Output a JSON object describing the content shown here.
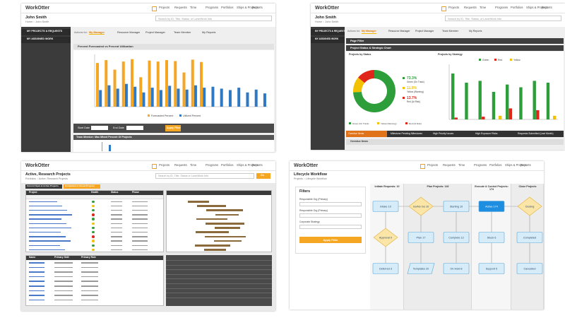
{
  "panels": [
    {
      "logo": "WorkOtter",
      "nav": [
        "Projects",
        "Requests",
        "Time",
        "Programs",
        "Portfolios",
        "Ships & Projects",
        "Reports"
      ],
      "user": "John Smith",
      "breadcrumb": "Home :: John Smith",
      "search": "Search by ID, Title, Status, or Lane/Work Info",
      "sidebar": [
        "MY PROJECTS & REQUESTS",
        "MY ASSIGNED WORK"
      ],
      "actions": "Actions for:",
      "tabs": [
        "My Manager",
        "Resource Manager",
        "Project Manager",
        "Team Member",
        "My Reports"
      ],
      "section": "Percent Forecasted vs Percent Utilization",
      "filters": [
        "Start Date",
        "End Date"
      ],
      "button": "Apply Filter",
      "footer": "Team Member: Max Mixed Percent Of Projects"
    },
    {
      "logo": "WorkOtter",
      "nav": [
        "Projects",
        "Requests",
        "Time",
        "Programs",
        "Portfolios",
        "Ships & Projects",
        "Reports"
      ],
      "user": "John Smith",
      "breadcrumb": "Home :: John Smith",
      "search": "Search by ID, Title, Status, or Lane/Work Info",
      "sidebar": [
        "MY PROJECTS & REQUESTS",
        "MY ASSIGNED WORK"
      ],
      "actions": "Actions for:",
      "tabs": [
        "My Manager",
        "Resource Manager",
        "Project Manager",
        "Team Member",
        "My Reports"
      ],
      "sections": [
        "Page Filter",
        "Project Status & Strategic Chart"
      ],
      "subtitles": [
        "Projects by Status",
        "Projects by Strategy"
      ],
      "bottom_tabs": [
        "Overdue Items",
        "Milestone Pending Milestones",
        "High Priority Issues",
        "High Exposure Risks",
        "Requests Submitted (Last Month)"
      ],
      "overdue": "Overdue Items"
    },
    {
      "logo": "WorkOtter",
      "nav": [
        "Projects",
        "Requests",
        "Time",
        "Programs",
        "Portfolios",
        "Ships & Projects",
        "Reports"
      ],
      "title": "Active, Research Projects",
      "breadcrumb": "Portfolios :: Active, Research Projects",
      "search": "Search by ID, Title, Status or Lane/Work Info",
      "go": "Go",
      "buttons": [
        "Current Open & Active Projects",
        "Completed & Closed Projects"
      ],
      "columns": [
        "Project",
        "Health",
        "Status",
        "Phase"
      ],
      "lower_columns": [
        "Name",
        "Primary Skill",
        "Primary Role"
      ]
    },
    {
      "logo": "WorkOtter",
      "nav": [
        "Projects",
        "Requests",
        "Time",
        "Programs",
        "Portfolios",
        "Ships & Projects",
        "Reports"
      ],
      "title": "Lifecycle Workflow",
      "breadcrumb": "Projects :: Lifecycle Workflow",
      "filters_title": "Filters",
      "filters": [
        "Responsible Org (Primary)",
        "Responsible Org (Primary)",
        "Corporate Strategy"
      ],
      "button": "Apply Filter",
      "stages": [
        "Initiate Requests: 10",
        "Plan Projects: 140",
        "Execute & Control Projects: 174",
        "Close Projects"
      ],
      "nodes": [
        "Intake 10",
        "Approval 0",
        "Deferred 3",
        "Go/No Go 10",
        "Plan 17",
        "Templates 20",
        "Starting 10",
        "Complete 12",
        "On Hold 8",
        "Active 174",
        "Stuck 6",
        "Support 5",
        "Closing",
        "Completed",
        "Cancelled"
      ]
    }
  ],
  "chart_data": [
    {
      "type": "bar",
      "categories": [
        null,
        null,
        null,
        null,
        null,
        null,
        null,
        null,
        null,
        null,
        null,
        null,
        null,
        null,
        null,
        null,
        null,
        null,
        null,
        null
      ],
      "series": [
        {
          "name": "Forecasted Percent",
          "color": "#f5a623",
          "values": [
            92,
            98,
            78,
            95,
            100,
            62,
            97,
            95,
            98,
            96,
            72,
            99,
            94,
            null,
            null,
            null,
            null,
            null,
            null,
            null
          ]
        },
        {
          "name": "Utilized Percent",
          "color": "#2f78c4",
          "values": [
            35,
            45,
            38,
            48,
            42,
            30,
            40,
            35,
            44,
            38,
            36,
            45,
            40,
            42,
            38,
            35,
            40,
            30,
            36,
            28
          ]
        }
      ],
      "ylim": [
        0,
        110
      ]
    },
    {
      "type": "pie",
      "categories": [
        "Green (On Track)",
        "Yellow (Warning)",
        "Red (At Risk)"
      ],
      "values": [
        73.3,
        11.9,
        13.7
      ],
      "value_labels": [
        "73.3%",
        "11.9%",
        "13.7%"
      ],
      "colors": [
        "#2e9e3a",
        "#f2c200",
        "#e0261b"
      ]
    },
    {
      "type": "bar",
      "categories": [
        null,
        null,
        null,
        null,
        null,
        null,
        null,
        null
      ],
      "series": [
        {
          "name": "Green",
          "color": "#2e9e3a",
          "values": [
            50,
            40,
            42,
            30,
            38,
            35,
            42,
            40
          ]
        },
        {
          "name": "Red",
          "color": "#e0261b",
          "values": [
            2,
            0,
            3,
            0,
            12,
            0,
            10,
            0
          ]
        },
        {
          "name": "Yellow",
          "color": "#f2c200",
          "values": [
            0,
            0,
            0,
            4,
            0,
            0,
            0,
            4
          ]
        }
      ],
      "ylim": [
        0,
        60
      ]
    }
  ]
}
